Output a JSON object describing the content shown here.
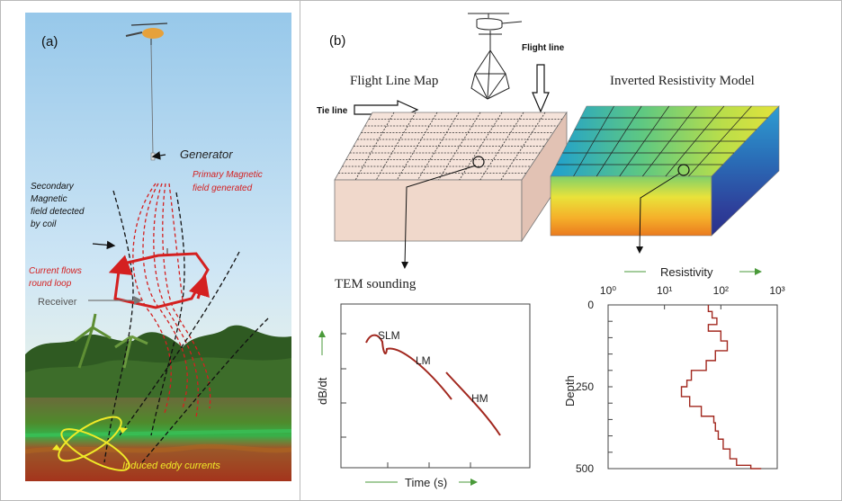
{
  "panel_a": {
    "label": "(a)",
    "generator": "Generator",
    "primary_field": [
      "Primary Magnetic",
      "field generated"
    ],
    "secondary_field": [
      "Secondary",
      "Magnetic",
      "field detected",
      "by coil"
    ],
    "current_flow": [
      "Current flows",
      "round loop"
    ],
    "receiver": "Receiver",
    "eddy_currents": "Induced eddy currents"
  },
  "panel_b": {
    "label": "(b)",
    "flight_line": "Flight line",
    "tie_line": "Tie line",
    "flight_line_map": "Flight Line Map",
    "inverted_model": "Inverted Resistivity Model",
    "tem_sounding": "TEM sounding"
  },
  "chart_data": [
    {
      "type": "line",
      "title": "",
      "xlabel": "Time (s)",
      "ylabel": "dB/dt",
      "annotations": [
        "SLM",
        "LM",
        "HM"
      ]
    },
    {
      "type": "line",
      "title": "",
      "xlabel": "Resistivity",
      "ylabel": "Depth",
      "x_scale": "log",
      "x_ticks": [
        "10⁰",
        "10¹",
        "10²",
        "10³"
      ],
      "y_ticks": [
        "0",
        "250",
        "500"
      ],
      "xlim": [
        1,
        1000
      ],
      "ylim": [
        0,
        500
      ],
      "series": [
        {
          "points": [
            [
              60,
              0
            ],
            [
              70,
              20
            ],
            [
              85,
              40
            ],
            [
              60,
              60
            ],
            [
              100,
              80
            ],
            [
              130,
              110
            ],
            [
              80,
              140
            ],
            [
              55,
              170
            ],
            [
              30,
              200
            ],
            [
              25,
              230
            ],
            [
              20,
              250
            ],
            [
              28,
              280
            ],
            [
              45,
              310
            ],
            [
              75,
              340
            ],
            [
              80,
              360
            ],
            [
              90,
              385
            ],
            [
              110,
              410
            ],
            [
              145,
              440
            ],
            [
              190,
              470
            ],
            [
              340,
              490
            ],
            [
              520,
              500
            ]
          ]
        }
      ]
    }
  ]
}
